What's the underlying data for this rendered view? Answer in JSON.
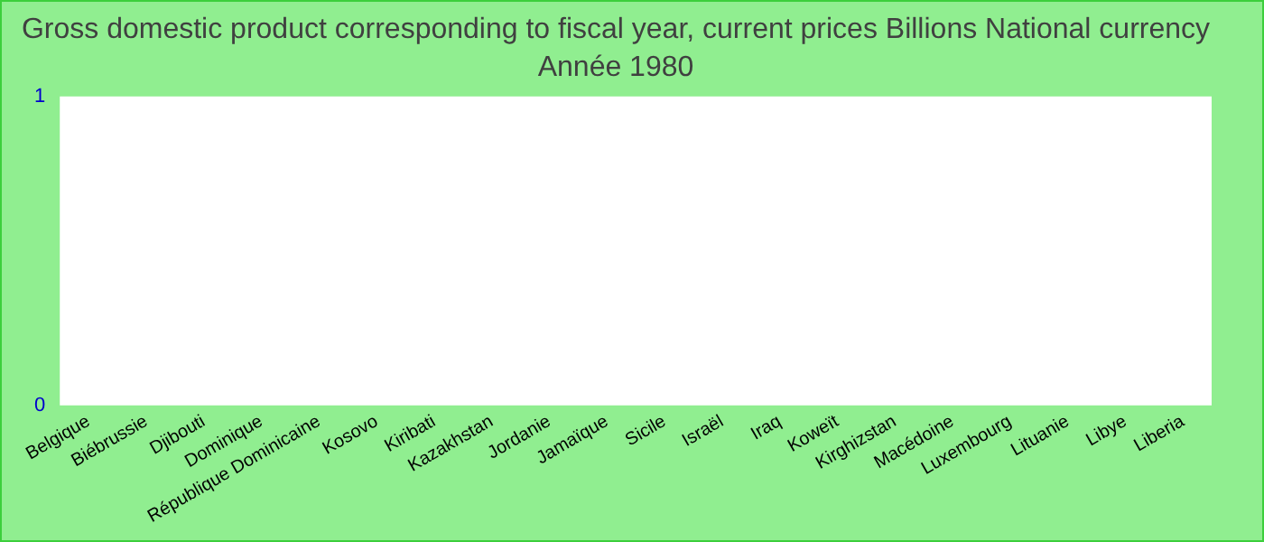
{
  "chart_data": {
    "type": "bar",
    "title": "Gross domestic product corresponding to fiscal year, current prices Billions National currency",
    "subtitle": "Année 1980",
    "categories": [
      "Belgique",
      "Biébrussie",
      "Djibouti",
      "Dominique",
      "République Dominicaine",
      "Kosovo",
      "Kiribati",
      "Kazakhstan",
      "Jordanie",
      "Jamaïque",
      "Sicile",
      "Israël",
      "Iraq",
      "Koweït",
      "Kirghizstan",
      "Macédoine",
      "Luxembourg",
      "Lituanie",
      "Libye",
      "Liberia"
    ],
    "values": [
      0,
      0,
      0,
      0,
      0,
      0,
      0,
      0,
      0,
      0,
      0,
      0,
      0,
      0,
      0,
      0,
      0,
      0,
      0,
      0
    ],
    "ylim": [
      0,
      1
    ],
    "yticks": [
      0,
      1
    ],
    "grid": false,
    "legend": false
  }
}
